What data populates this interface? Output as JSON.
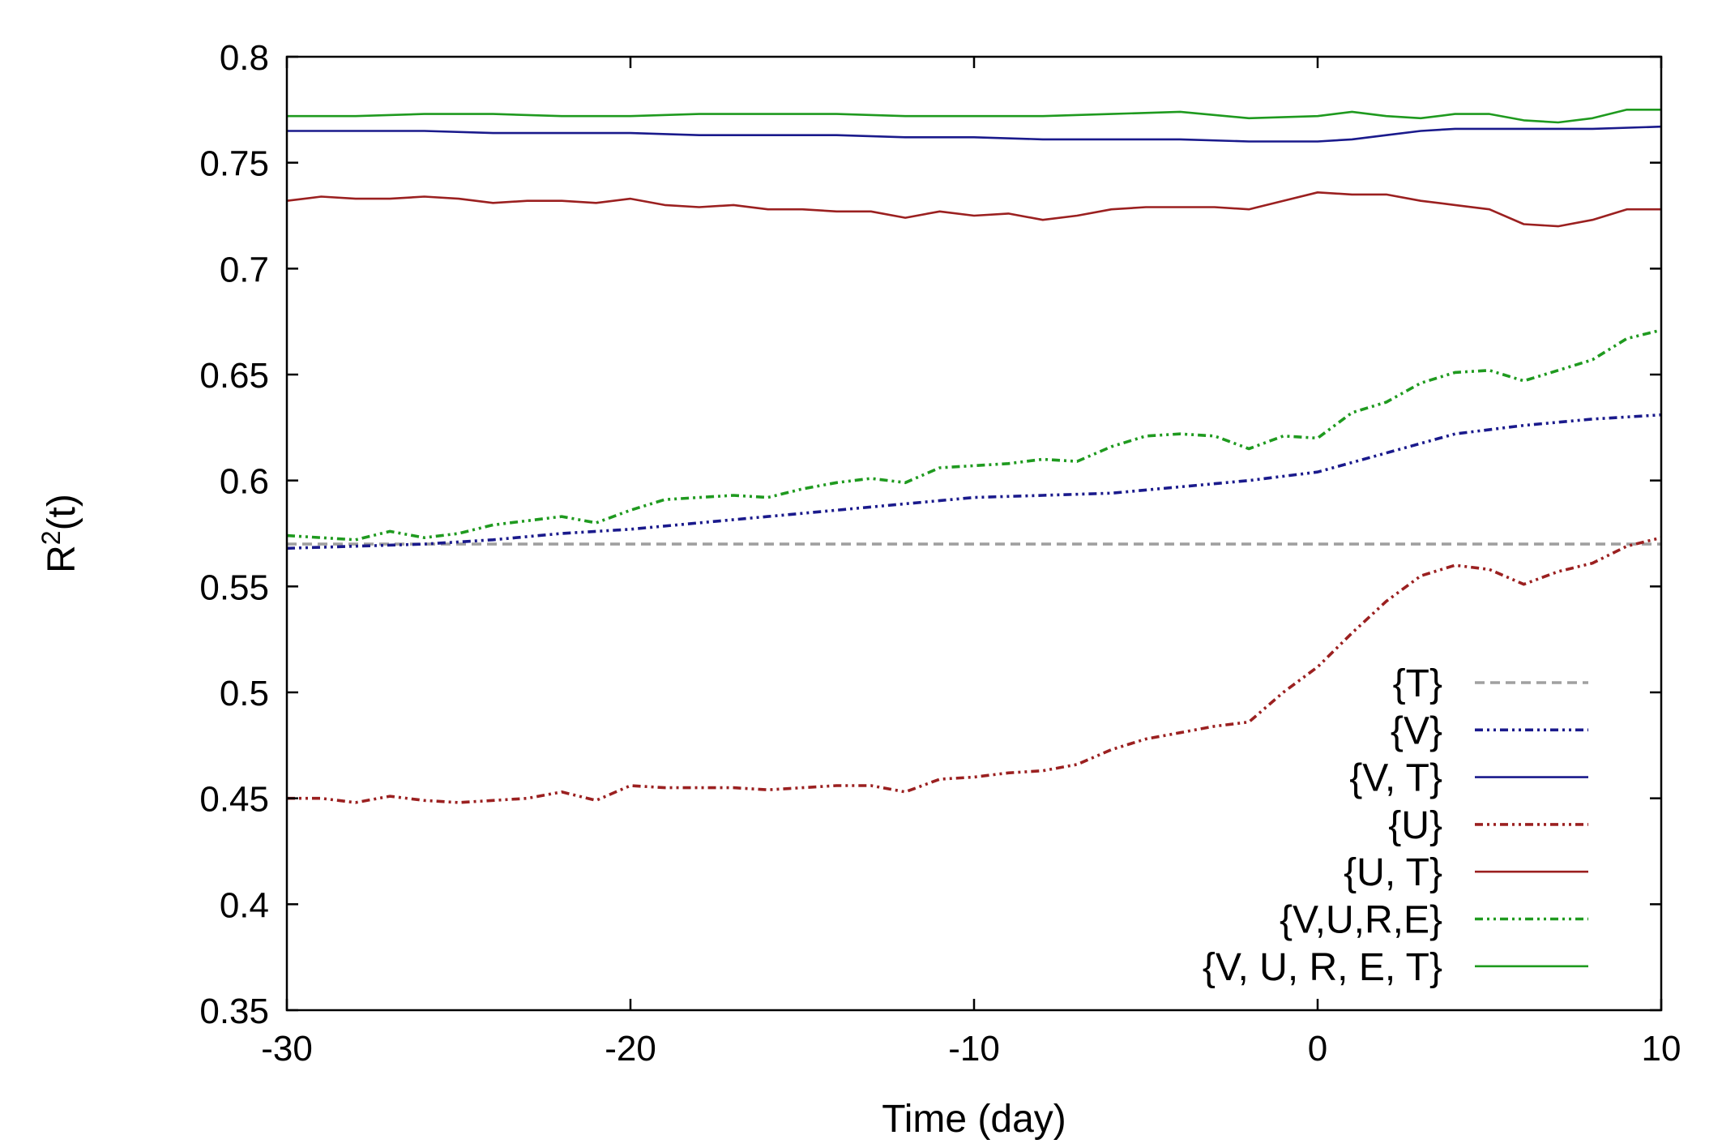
{
  "chart_data": {
    "type": "line",
    "title": "",
    "xlabel": "Time (day)",
    "ylabel_main": "R",
    "ylabel_sup": "2",
    "ylabel_tail": "(t)",
    "xlim": [
      -30,
      10
    ],
    "ylim": [
      0.35,
      0.8
    ],
    "xticks": [
      -30,
      -20,
      -10,
      0,
      10
    ],
    "xtick_labels": [
      "-30",
      "-20",
      "-10",
      "0",
      "10"
    ],
    "yticks": [
      0.35,
      0.4,
      0.45,
      0.5,
      0.55,
      0.6,
      0.65,
      0.7,
      0.75,
      0.8
    ],
    "ytick_labels": [
      "0.35",
      "0.4",
      "0.45",
      "0.5",
      "0.55",
      "0.6",
      "0.65",
      "0.7",
      "0.75",
      "0.8"
    ],
    "grid": false,
    "legend_position": "bottom-right",
    "series": [
      {
        "name": "{T}",
        "color": "#a0a0a0",
        "dash": "dashed",
        "x": [
          -30,
          10
        ],
        "y": [
          0.57,
          0.57
        ]
      },
      {
        "name": "{V}",
        "color": "#1a1a8c",
        "dash": "dashdotdot",
        "x": [
          -30,
          -28,
          -26,
          -24,
          -22,
          -20,
          -18,
          -16,
          -14,
          -12,
          -10,
          -8,
          -6,
          -4,
          -2,
          0,
          2,
          4,
          6,
          8,
          10
        ],
        "y": [
          0.568,
          0.569,
          0.57,
          0.572,
          0.575,
          0.577,
          0.58,
          0.583,
          0.586,
          0.589,
          0.592,
          0.593,
          0.594,
          0.597,
          0.6,
          0.604,
          0.613,
          0.622,
          0.626,
          0.629,
          0.631
        ]
      },
      {
        "name": "{V, T}",
        "color": "#1a1a8c",
        "dash": "solid",
        "x": [
          -30,
          -28,
          -26,
          -24,
          -22,
          -20,
          -18,
          -16,
          -14,
          -12,
          -10,
          -8,
          -6,
          -4,
          -2,
          0,
          1,
          2,
          3,
          4,
          6,
          8,
          10
        ],
        "y": [
          0.765,
          0.765,
          0.765,
          0.764,
          0.764,
          0.764,
          0.763,
          0.763,
          0.763,
          0.762,
          0.762,
          0.761,
          0.761,
          0.761,
          0.76,
          0.76,
          0.761,
          0.763,
          0.765,
          0.766,
          0.766,
          0.766,
          0.767
        ]
      },
      {
        "name": "{U}",
        "color": "#9b2020",
        "dash": "dashdotdot",
        "x": [
          -30,
          -29,
          -28,
          -27,
          -26,
          -25,
          -24,
          -23,
          -22,
          -21,
          -20,
          -19,
          -18,
          -17,
          -16,
          -15,
          -14,
          -13,
          -12,
          -11,
          -10,
          -9,
          -8,
          -7,
          -6,
          -5,
          -4,
          -3,
          -2,
          -1,
          0,
          1,
          2,
          3,
          4,
          5,
          6,
          7,
          8,
          9,
          10
        ],
        "y": [
          0.45,
          0.45,
          0.448,
          0.451,
          0.449,
          0.448,
          0.449,
          0.45,
          0.453,
          0.449,
          0.456,
          0.455,
          0.455,
          0.455,
          0.454,
          0.455,
          0.456,
          0.456,
          0.453,
          0.459,
          0.46,
          0.462,
          0.463,
          0.466,
          0.473,
          0.478,
          0.481,
          0.484,
          0.486,
          0.5,
          0.512,
          0.528,
          0.543,
          0.555,
          0.56,
          0.558,
          0.551,
          0.557,
          0.561,
          0.569,
          0.573
        ]
      },
      {
        "name": "{U, T}",
        "color": "#9b2020",
        "dash": "solid",
        "x": [
          -30,
          -29,
          -28,
          -27,
          -26,
          -25,
          -24,
          -23,
          -22,
          -21,
          -20,
          -19,
          -18,
          -17,
          -16,
          -15,
          -14,
          -13,
          -12,
          -11,
          -10,
          -9,
          -8,
          -7,
          -6,
          -5,
          -4,
          -3,
          -2,
          -1,
          0,
          1,
          2,
          3,
          4,
          5,
          6,
          7,
          8,
          9,
          10
        ],
        "y": [
          0.732,
          0.734,
          0.733,
          0.733,
          0.734,
          0.733,
          0.731,
          0.732,
          0.732,
          0.731,
          0.733,
          0.73,
          0.729,
          0.73,
          0.728,
          0.728,
          0.727,
          0.727,
          0.724,
          0.727,
          0.725,
          0.726,
          0.723,
          0.725,
          0.728,
          0.729,
          0.729,
          0.729,
          0.728,
          0.732,
          0.736,
          0.735,
          0.735,
          0.732,
          0.73,
          0.728,
          0.721,
          0.72,
          0.723,
          0.728,
          0.728
        ]
      },
      {
        "name": "{V,U,R,E}",
        "color": "#1f9a1f",
        "dash": "dashdotdot",
        "x": [
          -30,
          -29,
          -28,
          -27,
          -26,
          -25,
          -24,
          -23,
          -22,
          -21,
          -20,
          -19,
          -18,
          -17,
          -16,
          -15,
          -14,
          -13,
          -12,
          -11,
          -10,
          -9,
          -8,
          -7,
          -6,
          -5,
          -4,
          -3,
          -2,
          -1,
          0,
          1,
          2,
          3,
          4,
          5,
          6,
          7,
          8,
          9,
          10
        ],
        "y": [
          0.574,
          0.573,
          0.572,
          0.576,
          0.573,
          0.575,
          0.579,
          0.581,
          0.583,
          0.58,
          0.586,
          0.591,
          0.592,
          0.593,
          0.592,
          0.596,
          0.599,
          0.601,
          0.599,
          0.606,
          0.607,
          0.608,
          0.61,
          0.609,
          0.616,
          0.621,
          0.622,
          0.621,
          0.615,
          0.621,
          0.62,
          0.632,
          0.637,
          0.646,
          0.651,
          0.652,
          0.647,
          0.652,
          0.657,
          0.667,
          0.671
        ]
      },
      {
        "name": "{V, U, R, E, T}",
        "color": "#1f9a1f",
        "dash": "solid",
        "x": [
          -30,
          -28,
          -26,
          -24,
          -22,
          -20,
          -18,
          -16,
          -14,
          -12,
          -10,
          -8,
          -6,
          -4,
          -2,
          0,
          1,
          2,
          3,
          4,
          5,
          6,
          7,
          8,
          9,
          10
        ],
        "y": [
          0.772,
          0.772,
          0.773,
          0.773,
          0.772,
          0.772,
          0.773,
          0.773,
          0.773,
          0.772,
          0.772,
          0.772,
          0.773,
          0.774,
          0.771,
          0.772,
          0.774,
          0.772,
          0.771,
          0.773,
          0.773,
          0.77,
          0.769,
          0.771,
          0.775,
          0.775
        ]
      }
    ]
  }
}
